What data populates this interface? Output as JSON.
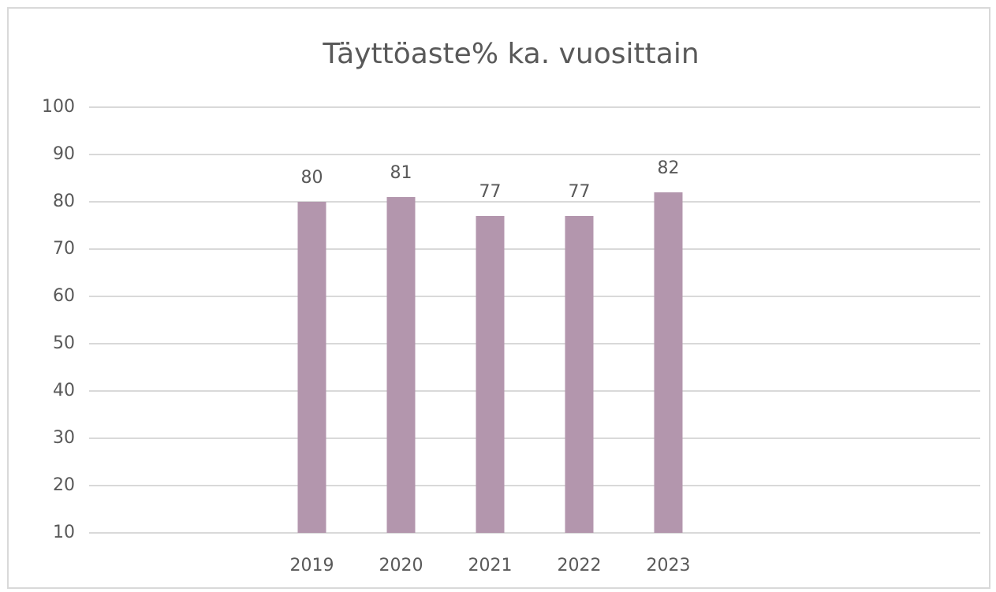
{
  "chart_data": {
    "type": "bar",
    "title": "Täyttöaste% ka. vuosittain",
    "categories": [
      null,
      null,
      "2019",
      "2020",
      "2021",
      "2022",
      "2023",
      null,
      null,
      null
    ],
    "values": [
      null,
      null,
      80,
      81,
      77,
      77,
      82,
      null,
      null,
      null
    ],
    "color": "#b396ad",
    "ylim": [
      10,
      100
    ],
    "yticks": [
      10,
      20,
      30,
      40,
      50,
      60,
      70,
      80,
      90,
      100
    ],
    "grid": true
  }
}
